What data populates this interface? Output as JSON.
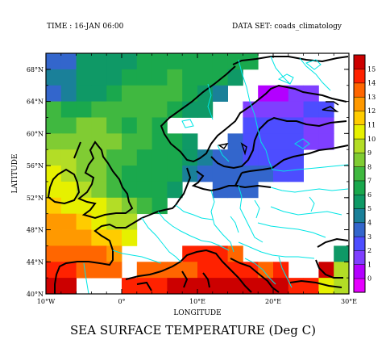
{
  "header": {
    "time_label": "TIME : 16-JAN 06:00",
    "dataset_label": "DATA SET: coads_climatology"
  },
  "title": "SEA SURFACE TEMPERATURE (Deg C)",
  "axes": {
    "xlabel": "LONGITUDE",
    "ylabel": "LATITUDE",
    "x_ticks": [
      "10°W",
      "0°",
      "10°E",
      "20°E",
      "30°E"
    ],
    "y_ticks": [
      "40°N",
      "44°N",
      "48°N",
      "52°N",
      "56°N",
      "60°N",
      "64°N",
      "68°N"
    ]
  },
  "colorbar": {
    "labels": [
      "0",
      "1",
      "2",
      "3",
      "4",
      "5",
      "6",
      "7",
      "8",
      "9",
      "10",
      "11",
      "12",
      "13",
      "14",
      "15"
    ],
    "colors": [
      "#e600ff",
      "#b300ff",
      "#7f3fff",
      "#4d4dff",
      "#3366cc",
      "#1a8099",
      "#0f9966",
      "#1aa84d",
      "#40b840",
      "#80cc33",
      "#b3dd26",
      "#e6f000",
      "#ffcc00",
      "#ff9900",
      "#ff6600",
      "#ff2200",
      "#cc0000"
    ]
  },
  "chart_data": {
    "type": "heatmap",
    "title": "SEA SURFACE TEMPERATURE (Deg C)",
    "xlabel": "LONGITUDE",
    "ylabel": "LATITUDE",
    "x_range": [
      -10,
      30
    ],
    "y_range": [
      40,
      70
    ],
    "value_range": [
      0,
      15
    ],
    "cell_size_deg": 2,
    "rows": [
      {
        "lat": 69,
        "lon_start": -9,
        "values": [
          3.4,
          3.6,
          5.6,
          5.6,
          5.6,
          5.8,
          6.2,
          6.6,
          6.6,
          6.6,
          6.6,
          6.4,
          6.4,
          6.2
        ]
      },
      {
        "lat": 67,
        "lon_start": -9,
        "values": [
          4.1,
          4.8,
          5.7,
          5.8,
          5.9,
          6.1,
          6.6,
          6.9,
          7.1,
          6.9,
          6.5,
          6.0,
          5.7
        ]
      },
      {
        "lat": 65,
        "lon_start": -9,
        "values": [
          3.8,
          4.6,
          5.6,
          5.9,
          6.3,
          7.1,
          7.3,
          7.3,
          7.1,
          6.7,
          5.8,
          4.8,
          null,
          null,
          0.9,
          0.9,
          1.1,
          1.4
        ]
      },
      {
        "lat": 63,
        "lon_start": -9,
        "values": [
          7.1,
          6.8,
          6.8,
          7.2,
          7.6,
          7.9,
          7.3,
          7.0,
          6.7,
          5.9,
          5.2,
          null,
          null,
          1.7,
          1.4,
          1.6,
          1.8,
          2.1,
          2.1
        ]
      },
      {
        "lat": 61,
        "lon_start": -9,
        "values": [
          7.8,
          7.5,
          8.1,
          8.5,
          7.7,
          6.9,
          7.3,
          6.3,
          null,
          null,
          null,
          null,
          null,
          2.1,
          2.2,
          2.0,
          2.1,
          1.2,
          1.0
        ]
      },
      {
        "lat": 59,
        "lon_start": -9,
        "values": [
          8.9,
          8.7,
          8.6,
          8.1,
          8.6,
          7.9,
          7.3,
          6.9,
          6.1,
          5.3,
          null,
          null,
          3.3,
          2.6,
          2.3,
          2.3,
          2.1,
          1.8,
          1.4
        ]
      },
      {
        "lat": 57,
        "lon_start": -9,
        "values": [
          9.2,
          9.1,
          8.9,
          8.6,
          7.9,
          7.3,
          6.8,
          6.4,
          6.9,
          5.9,
          4.1,
          3.3,
          3.0,
          2.9,
          2.8,
          2.8,
          2.7
        ]
      },
      {
        "lat": 55,
        "lon_start": -9,
        "values": [
          10.2,
          9.2,
          8.8,
          8.1,
          7.4,
          6.8,
          6.6,
          6.6,
          6.0,
          4.9,
          3.8,
          3.3,
          3.0,
          3.1,
          3.0,
          2.9,
          2.8
        ]
      },
      {
        "lat": 53,
        "lon_start": -9,
        "values": [
          10.7,
          10.3,
          9.3,
          8.7,
          7.2,
          6.8,
          6.6,
          6.4,
          5.2,
          null,
          null,
          3.1,
          3.2,
          3.0
        ]
      },
      {
        "lat": 51,
        "lon_start": -9,
        "values": [
          11.3,
          10.9,
          10.6,
          10.4,
          9.8,
          8.6,
          7.8,
          6.4
        ]
      },
      {
        "lat": 49,
        "lon_start": -9,
        "values": [
          12.6,
          12.3,
          11.6,
          10.9,
          9.9,
          9.1
        ]
      },
      {
        "lat": 47,
        "lon_start": -9,
        "values": [
          12.7,
          12.7,
          12.1,
          11.6,
          11.3,
          10.7
        ]
      },
      {
        "lat": 45,
        "lon_start": -9,
        "values": [
          13.5,
          13.3,
          13.4,
          13.0,
          12.9,
          null,
          null,
          null,
          null,
          14.3,
          14.3,
          14.0,
          13.8,
          null,
          null,
          null,
          null,
          null,
          null,
          5.6
        ]
      },
      {
        "lat": 43,
        "lon_start": -9,
        "values": [
          14.8,
          14.6,
          13.7,
          13.5,
          13.8,
          null,
          13.3,
          13.3,
          13.4,
          13.9,
          14.1,
          14.4,
          14.6,
          14.1,
          13.2,
          14.2,
          null,
          null,
          15.3,
          9.4
        ]
      },
      {
        "lat": 41,
        "lon_start": -9,
        "values": [
          15.2,
          15.3,
          null,
          null,
          null,
          14.3,
          14.3,
          14.2,
          15.1,
          15.4,
          15.0,
          15.4,
          15.6,
          15.8,
          15.3,
          15.6,
          14.9,
          14.3,
          10.8,
          9.5
        ]
      }
    ],
    "land_outlines": "coastlines (black) and national borders (cyan)"
  }
}
